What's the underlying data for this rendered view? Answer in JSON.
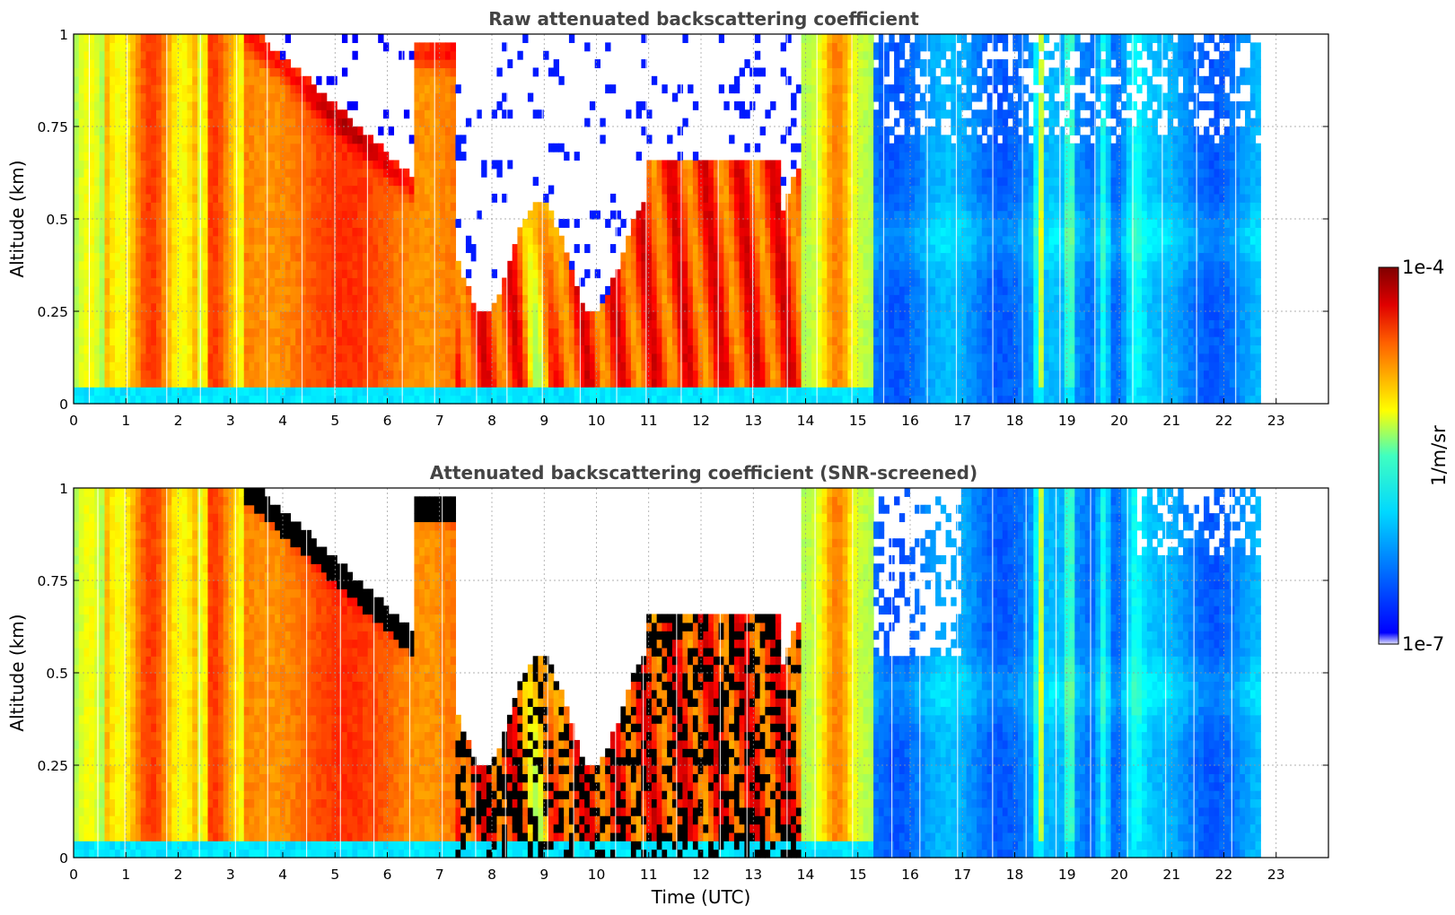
{
  "chart_data": [
    {
      "type": "heatmap",
      "title": "Raw attenuated backscattering coefficient",
      "xlabel": "",
      "ylabel": "Altitude (km)",
      "xlim": [
        0,
        24
      ],
      "ylim": [
        0,
        1
      ],
      "xticks": [
        "0",
        "1",
        "2",
        "3",
        "4",
        "5",
        "6",
        "7",
        "8",
        "9",
        "10",
        "11",
        "12",
        "13",
        "14",
        "15",
        "16",
        "17",
        "18",
        "19",
        "20",
        "21",
        "22",
        "23"
      ],
      "yticks": [
        "0",
        "0.25",
        "0.5",
        "0.75",
        "1"
      ],
      "grid": true,
      "data_extent_hours": [
        0,
        22.7
      ],
      "screened": false
    },
    {
      "type": "heatmap",
      "title": "Attenuated backscattering coefficient (SNR-screened)",
      "xlabel": "Time (UTC)",
      "ylabel": "Altitude (km)",
      "xlim": [
        0,
        24
      ],
      "ylim": [
        0,
        1
      ],
      "xticks": [
        "0",
        "1",
        "2",
        "3",
        "4",
        "5",
        "6",
        "7",
        "8",
        "9",
        "10",
        "11",
        "12",
        "13",
        "14",
        "15",
        "16",
        "17",
        "18",
        "19",
        "20",
        "21",
        "22",
        "23"
      ],
      "yticks": [
        "0",
        "0.25",
        "0.5",
        "0.75",
        "1"
      ],
      "grid": true,
      "data_extent_hours": [
        0,
        22.7
      ],
      "screened": true
    }
  ],
  "colorbar": {
    "label": "1/m/sr",
    "max_label": "1e-4",
    "min_label": "1e-7",
    "colormap": "jet",
    "scale": "log",
    "range": [
      1e-07,
      0.0001
    ]
  }
}
